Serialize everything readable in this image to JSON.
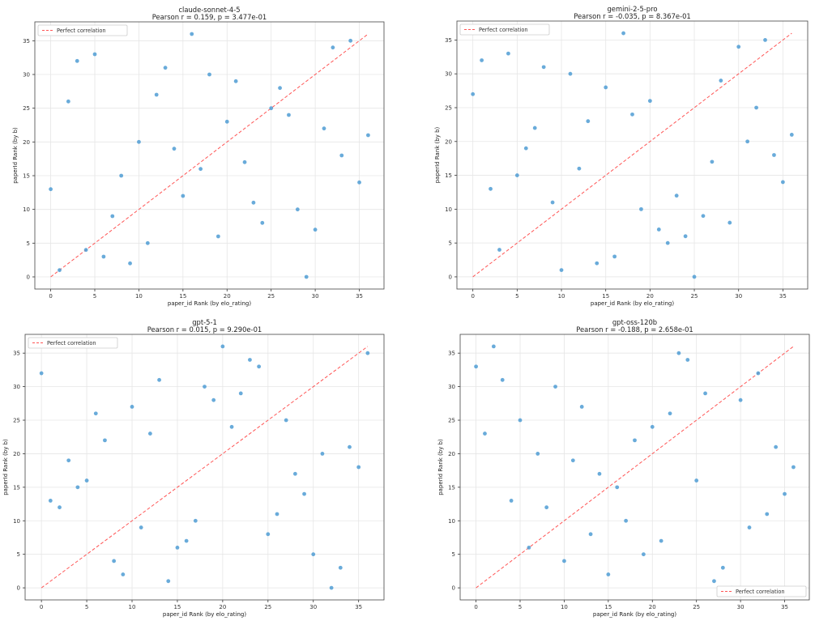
{
  "chart_data": [
    {
      "type": "scatter",
      "title": "claude-sonnet-4-5",
      "subtitle": "Pearson r = 0.159, p = 3.477e-01",
      "xlabel": "paper_id Rank (by elo_rating)",
      "ylabel": "paperId Rank (by b)",
      "xlim": [
        -1.8,
        37.8
      ],
      "ylim": [
        -1.8,
        37.8
      ],
      "xticks": [
        0,
        5,
        10,
        15,
        20,
        25,
        30,
        35
      ],
      "yticks": [
        0,
        5,
        10,
        15,
        20,
        25,
        30,
        35
      ],
      "grid": true,
      "legend": {
        "position": "top-left",
        "entries": [
          "Perfect correlation"
        ]
      },
      "reference_line": {
        "from": [
          0,
          0
        ],
        "to": [
          36,
          36
        ],
        "color": "#ff5555",
        "style": "dashed"
      },
      "point_color": "#4f9cd4",
      "points": [
        [
          0,
          13
        ],
        [
          1,
          1
        ],
        [
          2,
          26
        ],
        [
          3,
          32
        ],
        [
          4,
          4
        ],
        [
          5,
          33
        ],
        [
          6,
          3
        ],
        [
          7,
          9
        ],
        [
          8,
          15
        ],
        [
          9,
          2
        ],
        [
          10,
          20
        ],
        [
          11,
          5
        ],
        [
          12,
          27
        ],
        [
          13,
          31
        ],
        [
          14,
          19
        ],
        [
          15,
          12
        ],
        [
          16,
          36
        ],
        [
          17,
          16
        ],
        [
          18,
          30
        ],
        [
          19,
          6
        ],
        [
          20,
          23
        ],
        [
          21,
          29
        ],
        [
          22,
          17
        ],
        [
          23,
          11
        ],
        [
          24,
          8
        ],
        [
          25,
          25
        ],
        [
          26,
          28
        ],
        [
          27,
          24
        ],
        [
          28,
          10
        ],
        [
          29,
          0
        ],
        [
          30,
          7
        ],
        [
          31,
          22
        ],
        [
          32,
          34
        ],
        [
          33,
          18
        ],
        [
          34,
          35
        ],
        [
          35,
          14
        ],
        [
          36,
          21
        ]
      ]
    },
    {
      "type": "scatter",
      "title": "gemini-2-5-pro",
      "subtitle": "Pearson r = -0.035, p = 8.367e-01",
      "xlabel": "paper_id Rank (by elo_rating)",
      "ylabel": "paperId Rank (by b)",
      "xlim": [
        -1.8,
        37.8
      ],
      "ylim": [
        -1.8,
        37.8
      ],
      "xticks": [
        0,
        5,
        10,
        15,
        20,
        25,
        30,
        35
      ],
      "yticks": [
        0,
        5,
        10,
        15,
        20,
        25,
        30,
        35
      ],
      "grid": true,
      "legend": {
        "position": "top-left",
        "entries": [
          "Perfect correlation"
        ]
      },
      "reference_line": {
        "from": [
          0,
          0
        ],
        "to": [
          36,
          36
        ],
        "color": "#ff5555",
        "style": "dashed"
      },
      "point_color": "#4f9cd4",
      "points": [
        [
          0,
          27
        ],
        [
          1,
          32
        ],
        [
          2,
          13
        ],
        [
          3,
          4
        ],
        [
          4,
          33
        ],
        [
          5,
          15
        ],
        [
          6,
          19
        ],
        [
          7,
          22
        ],
        [
          8,
          31
        ],
        [
          9,
          11
        ],
        [
          10,
          1
        ],
        [
          11,
          30
        ],
        [
          12,
          16
        ],
        [
          13,
          23
        ],
        [
          14,
          2
        ],
        [
          15,
          28
        ],
        [
          16,
          3
        ],
        [
          17,
          36
        ],
        [
          18,
          24
        ],
        [
          19,
          10
        ],
        [
          20,
          26
        ],
        [
          21,
          7
        ],
        [
          22,
          5
        ],
        [
          23,
          12
        ],
        [
          24,
          6
        ],
        [
          25,
          0
        ],
        [
          26,
          9
        ],
        [
          27,
          17
        ],
        [
          28,
          29
        ],
        [
          29,
          8
        ],
        [
          30,
          34
        ],
        [
          31,
          20
        ],
        [
          32,
          25
        ],
        [
          33,
          35
        ],
        [
          34,
          18
        ],
        [
          35,
          14
        ],
        [
          36,
          21
        ]
      ]
    },
    {
      "type": "scatter",
      "title": "gpt-5-1",
      "subtitle": "Pearson r = 0.015, p = 9.290e-01",
      "xlabel": "paper_id Rank (by elo_rating)",
      "ylabel": "paperId Rank (by b)",
      "xlim": [
        -1.8,
        37.8
      ],
      "ylim": [
        -1.8,
        37.8
      ],
      "xticks": [
        0,
        5,
        10,
        15,
        20,
        25,
        30,
        35
      ],
      "yticks": [
        0,
        5,
        10,
        15,
        20,
        25,
        30,
        35
      ],
      "grid": true,
      "legend": {
        "position": "top-left",
        "entries": [
          "Perfect correlation"
        ]
      },
      "reference_line": {
        "from": [
          0,
          0
        ],
        "to": [
          36,
          36
        ],
        "color": "#ff5555",
        "style": "dashed"
      },
      "point_color": "#4f9cd4",
      "points": [
        [
          0,
          32
        ],
        [
          1,
          13
        ],
        [
          2,
          12
        ],
        [
          3,
          19
        ],
        [
          4,
          15
        ],
        [
          5,
          16
        ],
        [
          6,
          26
        ],
        [
          7,
          22
        ],
        [
          8,
          4
        ],
        [
          9,
          2
        ],
        [
          10,
          27
        ],
        [
          11,
          9
        ],
        [
          12,
          23
        ],
        [
          13,
          31
        ],
        [
          14,
          1
        ],
        [
          15,
          6
        ],
        [
          16,
          7
        ],
        [
          17,
          10
        ],
        [
          18,
          30
        ],
        [
          19,
          28
        ],
        [
          20,
          36
        ],
        [
          21,
          24
        ],
        [
          22,
          29
        ],
        [
          23,
          34
        ],
        [
          24,
          33
        ],
        [
          25,
          8
        ],
        [
          26,
          11
        ],
        [
          27,
          25
        ],
        [
          28,
          17
        ],
        [
          29,
          14
        ],
        [
          30,
          5
        ],
        [
          31,
          20
        ],
        [
          32,
          0
        ],
        [
          33,
          3
        ],
        [
          34,
          21
        ],
        [
          35,
          18
        ],
        [
          36,
          35
        ]
      ]
    },
    {
      "type": "scatter",
      "title": "gpt-oss-120b",
      "subtitle": "Pearson r = -0.188, p = 2.658e-01",
      "xlabel": "paper_id Rank (by elo_rating)",
      "ylabel": "paperId Rank (by b)",
      "xlim": [
        -1.8,
        37.8
      ],
      "ylim": [
        -1.8,
        37.8
      ],
      "xticks": [
        0,
        5,
        10,
        15,
        20,
        25,
        30,
        35
      ],
      "yticks": [
        0,
        5,
        10,
        15,
        20,
        25,
        30,
        35
      ],
      "grid": true,
      "legend": {
        "position": "bottom-right",
        "entries": [
          "Perfect correlation"
        ]
      },
      "reference_line": {
        "from": [
          0,
          0
        ],
        "to": [
          36,
          36
        ],
        "color": "#ff5555",
        "style": "dashed"
      },
      "point_color": "#4f9cd4",
      "points": [
        [
          0,
          33
        ],
        [
          1,
          23
        ],
        [
          2,
          36
        ],
        [
          3,
          31
        ],
        [
          4,
          13
        ],
        [
          5,
          25
        ],
        [
          6,
          6
        ],
        [
          7,
          20
        ],
        [
          8,
          12
        ],
        [
          9,
          30
        ],
        [
          10,
          4
        ],
        [
          11,
          19
        ],
        [
          12,
          27
        ],
        [
          13,
          8
        ],
        [
          14,
          17
        ],
        [
          15,
          2
        ],
        [
          16,
          15
        ],
        [
          17,
          10
        ],
        [
          18,
          22
        ],
        [
          19,
          5
        ],
        [
          20,
          24
        ],
        [
          21,
          7
        ],
        [
          22,
          26
        ],
        [
          23,
          35
        ],
        [
          24,
          34
        ],
        [
          25,
          16
        ],
        [
          26,
          29
        ],
        [
          27,
          1
        ],
        [
          28,
          3
        ],
        [
          29,
          0
        ],
        [
          30,
          28
        ],
        [
          31,
          9
        ],
        [
          32,
          32
        ],
        [
          33,
          11
        ],
        [
          34,
          21
        ],
        [
          35,
          14
        ],
        [
          36,
          18
        ]
      ]
    }
  ]
}
